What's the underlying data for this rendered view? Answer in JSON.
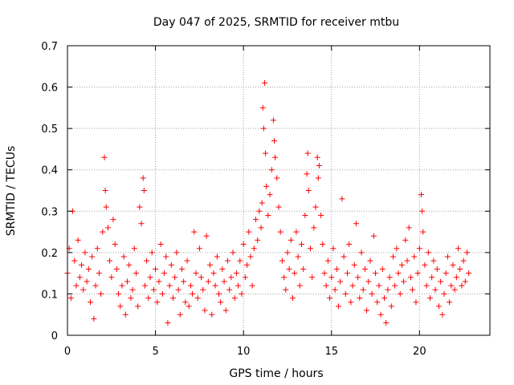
{
  "chart_data": {
    "type": "scatter",
    "title": "Day 047 of 2025, SRMTID for receiver mtbu",
    "xlabel": "GPS time / hours",
    "ylabel": "SRMTID / TECUs",
    "xlim": [
      0,
      24
    ],
    "ylim": [
      0,
      0.7
    ],
    "xticks": [
      0,
      5,
      10,
      15,
      20
    ],
    "yticks": [
      0,
      0.1,
      0.2,
      0.3,
      0.4,
      0.5,
      0.6,
      0.7
    ],
    "grid": true,
    "marker": "+",
    "series": [
      {
        "name": "SRMTID",
        "color": "#ff0000",
        "points": [
          [
            0.0,
            0.15
          ],
          [
            0.1,
            0.21
          ],
          [
            0.2,
            0.09
          ],
          [
            0.3,
            0.3
          ],
          [
            0.4,
            0.18
          ],
          [
            0.5,
            0.12
          ],
          [
            0.6,
            0.23
          ],
          [
            0.7,
            0.14
          ],
          [
            0.8,
            0.17
          ],
          [
            0.9,
            0.11
          ],
          [
            1.0,
            0.2
          ],
          [
            1.1,
            0.13
          ],
          [
            1.2,
            0.16
          ],
          [
            1.3,
            0.08
          ],
          [
            1.4,
            0.19
          ],
          [
            1.5,
            0.04
          ],
          [
            1.6,
            0.12
          ],
          [
            1.7,
            0.21
          ],
          [
            1.8,
            0.15
          ],
          [
            1.9,
            0.1
          ],
          [
            2.0,
            0.25
          ],
          [
            2.1,
            0.43
          ],
          [
            2.15,
            0.35
          ],
          [
            2.2,
            0.31
          ],
          [
            2.3,
            0.26
          ],
          [
            2.4,
            0.18
          ],
          [
            2.5,
            0.14
          ],
          [
            2.6,
            0.28
          ],
          [
            2.7,
            0.22
          ],
          [
            2.8,
            0.16
          ],
          [
            2.9,
            0.1
          ],
          [
            3.0,
            0.07
          ],
          [
            3.1,
            0.12
          ],
          [
            3.2,
            0.19
          ],
          [
            3.3,
            0.05
          ],
          [
            3.4,
            0.13
          ],
          [
            3.5,
            0.17
          ],
          [
            3.6,
            0.09
          ],
          [
            3.7,
            0.11
          ],
          [
            3.8,
            0.21
          ],
          [
            3.9,
            0.15
          ],
          [
            4.0,
            0.07
          ],
          [
            4.1,
            0.31
          ],
          [
            4.2,
            0.27
          ],
          [
            4.3,
            0.38
          ],
          [
            4.35,
            0.35
          ],
          [
            4.4,
            0.12
          ],
          [
            4.5,
            0.18
          ],
          [
            4.6,
            0.09
          ],
          [
            4.7,
            0.14
          ],
          [
            4.8,
            0.2
          ],
          [
            4.9,
            0.11
          ],
          [
            5.0,
            0.16
          ],
          [
            5.1,
            0.08
          ],
          [
            5.2,
            0.13
          ],
          [
            5.3,
            0.22
          ],
          [
            5.4,
            0.1
          ],
          [
            5.5,
            0.15
          ],
          [
            5.6,
            0.19
          ],
          [
            5.7,
            0.03
          ],
          [
            5.8,
            0.12
          ],
          [
            5.9,
            0.17
          ],
          [
            6.0,
            0.09
          ],
          [
            6.1,
            0.14
          ],
          [
            6.2,
            0.2
          ],
          [
            6.3,
            0.11
          ],
          [
            6.4,
            0.05
          ],
          [
            6.5,
            0.16
          ],
          [
            6.6,
            0.13
          ],
          [
            6.7,
            0.08
          ],
          [
            6.8,
            0.18
          ],
          [
            6.9,
            0.07
          ],
          [
            7.0,
            0.12
          ],
          [
            7.1,
            0.1
          ],
          [
            7.2,
            0.25
          ],
          [
            7.3,
            0.15
          ],
          [
            7.4,
            0.09
          ],
          [
            7.5,
            0.21
          ],
          [
            7.6,
            0.14
          ],
          [
            7.7,
            0.11
          ],
          [
            7.8,
            0.06
          ],
          [
            7.9,
            0.24
          ],
          [
            8.0,
            0.13
          ],
          [
            8.1,
            0.17
          ],
          [
            8.2,
            0.05
          ],
          [
            8.3,
            0.15
          ],
          [
            8.4,
            0.12
          ],
          [
            8.5,
            0.19
          ],
          [
            8.6,
            0.1
          ],
          [
            8.7,
            0.08
          ],
          [
            8.8,
            0.16
          ],
          [
            8.9,
            0.13
          ],
          [
            9.0,
            0.06
          ],
          [
            9.1,
            0.18
          ],
          [
            9.2,
            0.11
          ],
          [
            9.3,
            0.14
          ],
          [
            9.4,
            0.2
          ],
          [
            9.5,
            0.09
          ],
          [
            9.6,
            0.15
          ],
          [
            9.7,
            0.12
          ],
          [
            9.8,
            0.18
          ],
          [
            9.9,
            0.1
          ],
          [
            10.0,
            0.22
          ],
          [
            10.1,
            0.14
          ],
          [
            10.2,
            0.17
          ],
          [
            10.3,
            0.25
          ],
          [
            10.4,
            0.19
          ],
          [
            10.5,
            0.12
          ],
          [
            10.6,
            0.21
          ],
          [
            10.7,
            0.28
          ],
          [
            10.8,
            0.23
          ],
          [
            10.9,
            0.3
          ],
          [
            11.0,
            0.26
          ],
          [
            11.05,
            0.32
          ],
          [
            11.1,
            0.55
          ],
          [
            11.15,
            0.5
          ],
          [
            11.2,
            0.61
          ],
          [
            11.25,
            0.44
          ],
          [
            11.3,
            0.36
          ],
          [
            11.4,
            0.29
          ],
          [
            11.5,
            0.34
          ],
          [
            11.6,
            0.4
          ],
          [
            11.7,
            0.52
          ],
          [
            11.75,
            0.47
          ],
          [
            11.8,
            0.43
          ],
          [
            11.9,
            0.38
          ],
          [
            12.0,
            0.31
          ],
          [
            12.1,
            0.25
          ],
          [
            12.2,
            0.18
          ],
          [
            12.3,
            0.14
          ],
          [
            12.4,
            0.11
          ],
          [
            12.5,
            0.2
          ],
          [
            12.6,
            0.16
          ],
          [
            12.7,
            0.23
          ],
          [
            12.8,
            0.09
          ],
          [
            12.9,
            0.15
          ],
          [
            13.0,
            0.25
          ],
          [
            13.1,
            0.19
          ],
          [
            13.2,
            0.12
          ],
          [
            13.3,
            0.22
          ],
          [
            13.4,
            0.16
          ],
          [
            13.5,
            0.29
          ],
          [
            13.6,
            0.39
          ],
          [
            13.65,
            0.44
          ],
          [
            13.7,
            0.35
          ],
          [
            13.8,
            0.21
          ],
          [
            13.9,
            0.14
          ],
          [
            14.0,
            0.26
          ],
          [
            14.1,
            0.31
          ],
          [
            14.2,
            0.43
          ],
          [
            14.25,
            0.38
          ],
          [
            14.3,
            0.41
          ],
          [
            14.4,
            0.29
          ],
          [
            14.5,
            0.22
          ],
          [
            14.6,
            0.15
          ],
          [
            14.7,
            0.12
          ],
          [
            14.8,
            0.18
          ],
          [
            14.9,
            0.09
          ],
          [
            15.0,
            0.14
          ],
          [
            15.1,
            0.21
          ],
          [
            15.2,
            0.11
          ],
          [
            15.3,
            0.16
          ],
          [
            15.4,
            0.07
          ],
          [
            15.5,
            0.13
          ],
          [
            15.6,
            0.33
          ],
          [
            15.7,
            0.19
          ],
          [
            15.8,
            0.1
          ],
          [
            15.9,
            0.15
          ],
          [
            16.0,
            0.22
          ],
          [
            16.1,
            0.08
          ],
          [
            16.2,
            0.12
          ],
          [
            16.3,
            0.17
          ],
          [
            16.4,
            0.27
          ],
          [
            16.5,
            0.14
          ],
          [
            16.6,
            0.09
          ],
          [
            16.7,
            0.2
          ],
          [
            16.8,
            0.11
          ],
          [
            16.9,
            0.16
          ],
          [
            17.0,
            0.06
          ],
          [
            17.1,
            0.13
          ],
          [
            17.2,
            0.18
          ],
          [
            17.3,
            0.1
          ],
          [
            17.4,
            0.24
          ],
          [
            17.5,
            0.15
          ],
          [
            17.6,
            0.08
          ],
          [
            17.7,
            0.12
          ],
          [
            17.8,
            0.05
          ],
          [
            17.9,
            0.16
          ],
          [
            18.0,
            0.09
          ],
          [
            18.1,
            0.03
          ],
          [
            18.2,
            0.11
          ],
          [
            18.3,
            0.14
          ],
          [
            18.4,
            0.07
          ],
          [
            18.5,
            0.19
          ],
          [
            18.6,
            0.12
          ],
          [
            18.7,
            0.21
          ],
          [
            18.8,
            0.15
          ],
          [
            18.9,
            0.1
          ],
          [
            19.0,
            0.17
          ],
          [
            19.1,
            0.13
          ],
          [
            19.2,
            0.23
          ],
          [
            19.3,
            0.18
          ],
          [
            19.4,
            0.26
          ],
          [
            19.5,
            0.14
          ],
          [
            19.6,
            0.11
          ],
          [
            19.7,
            0.19
          ],
          [
            19.8,
            0.08
          ],
          [
            19.9,
            0.15
          ],
          [
            20.0,
            0.21
          ],
          [
            20.1,
            0.34
          ],
          [
            20.15,
            0.3
          ],
          [
            20.2,
            0.25
          ],
          [
            20.3,
            0.17
          ],
          [
            20.4,
            0.12
          ],
          [
            20.5,
            0.2
          ],
          [
            20.6,
            0.09
          ],
          [
            20.7,
            0.14
          ],
          [
            20.8,
            0.18
          ],
          [
            20.9,
            0.11
          ],
          [
            21.0,
            0.16
          ],
          [
            21.1,
            0.07
          ],
          [
            21.2,
            0.13
          ],
          [
            21.3,
            0.05
          ],
          [
            21.4,
            0.1
          ],
          [
            21.5,
            0.15
          ],
          [
            21.6,
            0.19
          ],
          [
            21.7,
            0.08
          ],
          [
            21.8,
            0.12
          ],
          [
            21.9,
            0.17
          ],
          [
            22.0,
            0.11
          ],
          [
            22.1,
            0.14
          ],
          [
            22.2,
            0.21
          ],
          [
            22.3,
            0.16
          ],
          [
            22.4,
            0.12
          ],
          [
            22.5,
            0.18
          ],
          [
            22.6,
            0.13
          ],
          [
            22.7,
            0.2
          ],
          [
            22.8,
            0.15
          ]
        ]
      }
    ]
  }
}
